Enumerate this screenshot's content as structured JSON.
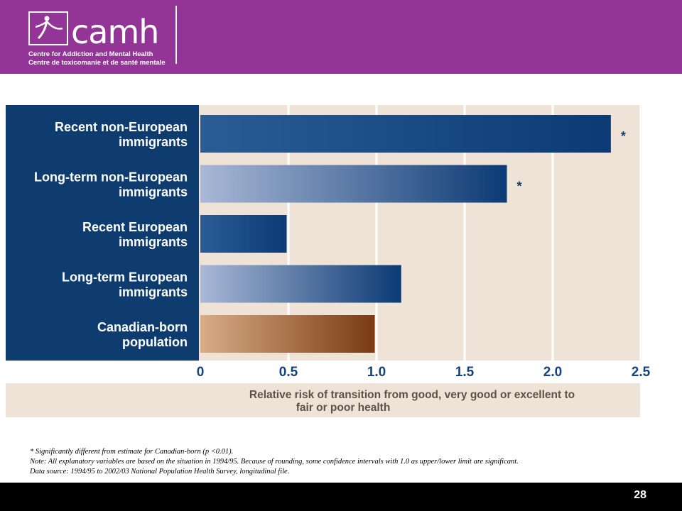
{
  "header": {
    "logo_text": "camh",
    "org_name_en": "Centre for Addiction and Mental Health",
    "org_name_fr": "Centre de toxicomanie et de santé mentale",
    "brand_color": "#933596"
  },
  "chart_data": {
    "type": "bar",
    "orientation": "horizontal",
    "categories": [
      [
        "Recent non-European",
        "immigrants"
      ],
      [
        "Long-term non-European",
        "immigrants"
      ],
      [
        "Recent European",
        "immigrants"
      ],
      [
        "Long-term European",
        "immigrants"
      ],
      [
        "Canadian-born",
        "population"
      ]
    ],
    "values": [
      2.33,
      1.74,
      0.49,
      1.14,
      0.99
    ],
    "significance": [
      "*",
      "*",
      "",
      "",
      ""
    ],
    "xlabel": [
      "Relative risk of transition from good, very good or excellent to",
      "fair or poor health"
    ],
    "xlim": [
      0,
      2.5
    ],
    "xticks": [
      "0",
      "0.5",
      "1.0",
      "1.5",
      "2.0",
      "2.5"
    ],
    "grid": true,
    "colors": {
      "immigrant_bar": "#0b3a74",
      "reference_bar": "#7a3a12",
      "category_panel": "#0f3c6e",
      "plot_background": "#eee3d6"
    }
  },
  "footnotes": [
    "* Significantly different from estimate for Canadian-born (p <0.01).",
    "Note: All explanatory variables are based on the situation in 1994/95. Because of rounding, some confidence intervals with 1.0 as upper/lower limit are significant.",
    "Data source: 1994/95 to 2002/03 National Population Health Survey, longitudinal file."
  ],
  "page_number": "28"
}
